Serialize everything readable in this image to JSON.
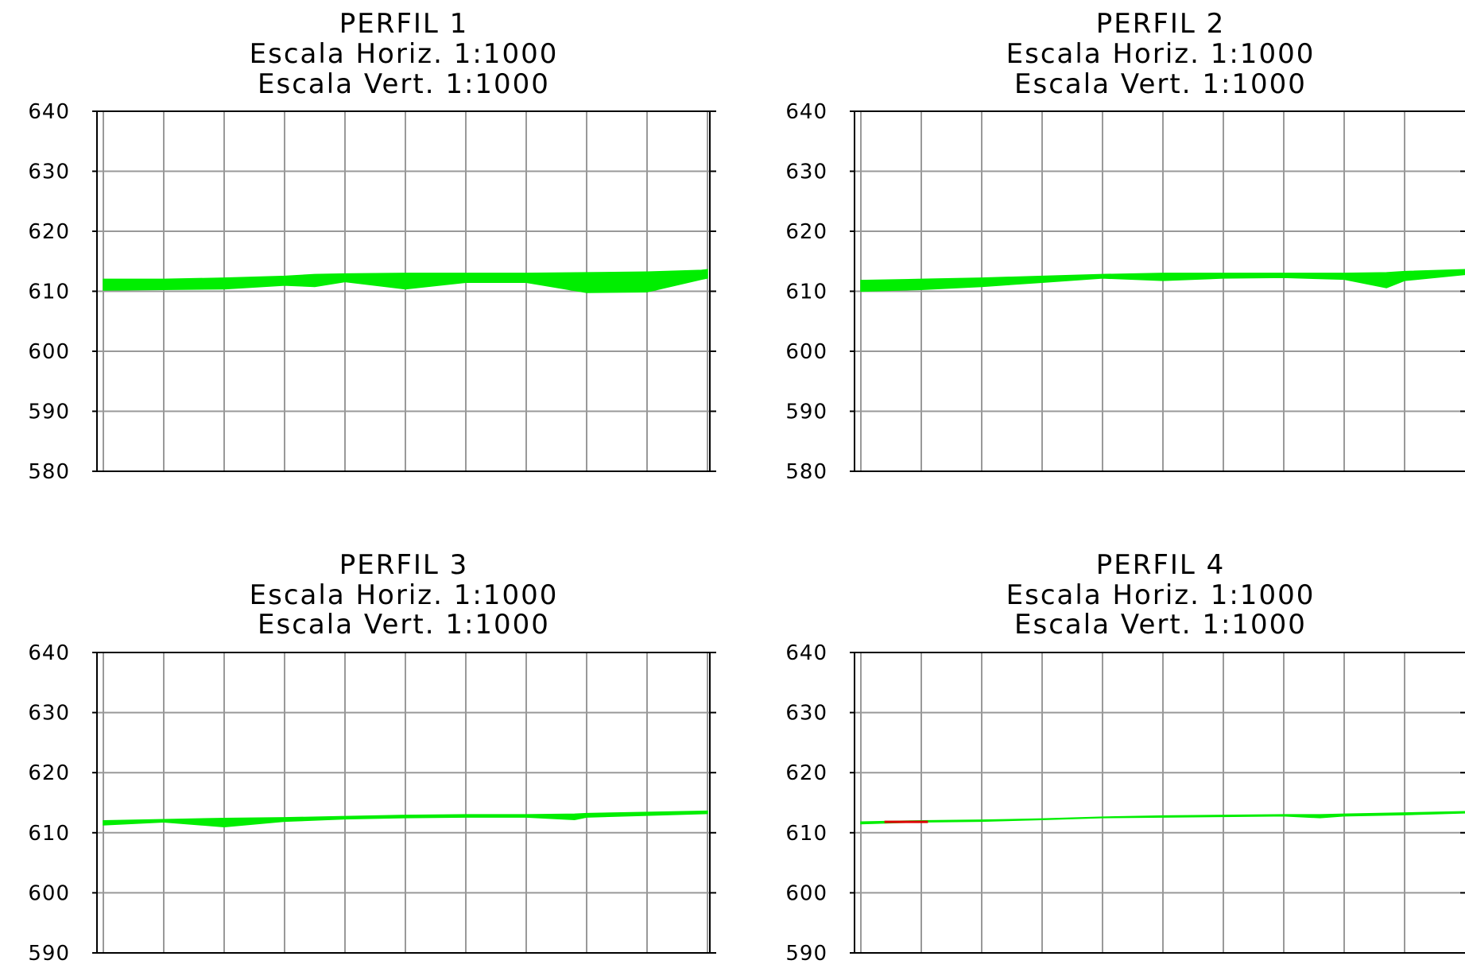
{
  "chart_data": [
    {
      "type": "area",
      "title": "PERFIL 1",
      "subtitle": [
        "Escala Horiz. 1:1000",
        "Escala Vert. 1:1000"
      ],
      "xlabel": "",
      "ylabel": "",
      "ylim": [
        580,
        640
      ],
      "yticks": [
        640,
        630,
        620,
        610,
        600,
        590,
        580
      ],
      "grid": true,
      "series": [
        {
          "color": "#00ee00",
          "x": [
            0,
            1,
            2,
            3,
            3.5,
            4,
            5,
            6,
            7,
            8,
            9,
            9.9,
            10
          ],
          "upper": [
            612,
            612,
            612.2,
            612.5,
            612.8,
            612.9,
            613,
            613,
            613,
            613.1,
            613.2,
            613.5,
            613.6
          ],
          "lower": [
            610.2,
            610.3,
            610.4,
            611,
            610.8,
            611.6,
            610.4,
            611.5,
            611.5,
            609.8,
            609.9,
            612,
            612.2
          ]
        }
      ]
    },
    {
      "type": "area",
      "title": "PERFIL 2",
      "subtitle": [
        "Escala Horiz. 1:1000",
        "Escala Vert. 1:1000"
      ],
      "xlabel": "",
      "ylabel": "",
      "ylim": [
        580,
        640
      ],
      "yticks": [
        640,
        630,
        620,
        610,
        600,
        590,
        580
      ],
      "grid": true,
      "series": [
        {
          "color": "#00ee00",
          "x": [
            0,
            1,
            2,
            3,
            4,
            5,
            6,
            7,
            8,
            8.7,
            9,
            10
          ],
          "upper": [
            611.8,
            612,
            612.2,
            612.5,
            612.8,
            613,
            613,
            613,
            613,
            613.1,
            613.3,
            613.6
          ],
          "lower": [
            610,
            610.3,
            610.8,
            611.5,
            612.2,
            611.8,
            612.2,
            612.3,
            612,
            610.6,
            611.8,
            612.8
          ]
        }
      ]
    },
    {
      "type": "area",
      "title": "PERFIL 3",
      "subtitle": [
        "Escala Horiz. 1:1000",
        "Escala Vert. 1:1000"
      ],
      "xlabel": "",
      "ylabel": "",
      "ylim": [
        590,
        640
      ],
      "yticks": [
        640,
        630,
        620,
        610,
        600,
        590
      ],
      "grid": true,
      "series": [
        {
          "color": "#00ee00",
          "x": [
            0,
            1,
            2,
            3,
            4,
            5,
            6,
            7,
            7.8,
            8,
            9,
            10
          ],
          "upper": [
            612,
            612.2,
            612.4,
            612.5,
            612.7,
            612.9,
            613,
            613,
            613.1,
            613.2,
            613.4,
            613.6
          ],
          "lower": [
            611.3,
            611.8,
            611,
            611.9,
            612.3,
            612.5,
            612.6,
            612.6,
            612.2,
            612.6,
            612.9,
            613.2
          ]
        }
      ]
    },
    {
      "type": "area",
      "title": "PERFIL 4",
      "subtitle": [
        "Escala Horiz. 1:1000",
        "Escala Vert. 1:1000"
      ],
      "xlabel": "",
      "ylabel": "",
      "ylim": [
        590,
        640
      ],
      "yticks": [
        640,
        630,
        620,
        610,
        600,
        590
      ],
      "grid": true,
      "series": [
        {
          "color": "#00ee00",
          "x": [
            0,
            1,
            2,
            3,
            4,
            5,
            6,
            7,
            7.6,
            8,
            9,
            10
          ],
          "upper": [
            611.8,
            612,
            612.1,
            612.3,
            612.6,
            612.8,
            612.9,
            613,
            613,
            613.1,
            613.3,
            613.5
          ],
          "lower": [
            611.5,
            611.8,
            611.9,
            612.2,
            612.5,
            612.6,
            612.7,
            612.8,
            612.5,
            612.8,
            613,
            613.3
          ]
        },
        {
          "color": "#dd0000",
          "x": [
            0.4,
            1.1
          ],
          "upper": [
            611.9,
            611.9
          ],
          "lower": [
            611.7,
            611.7
          ]
        }
      ]
    }
  ]
}
